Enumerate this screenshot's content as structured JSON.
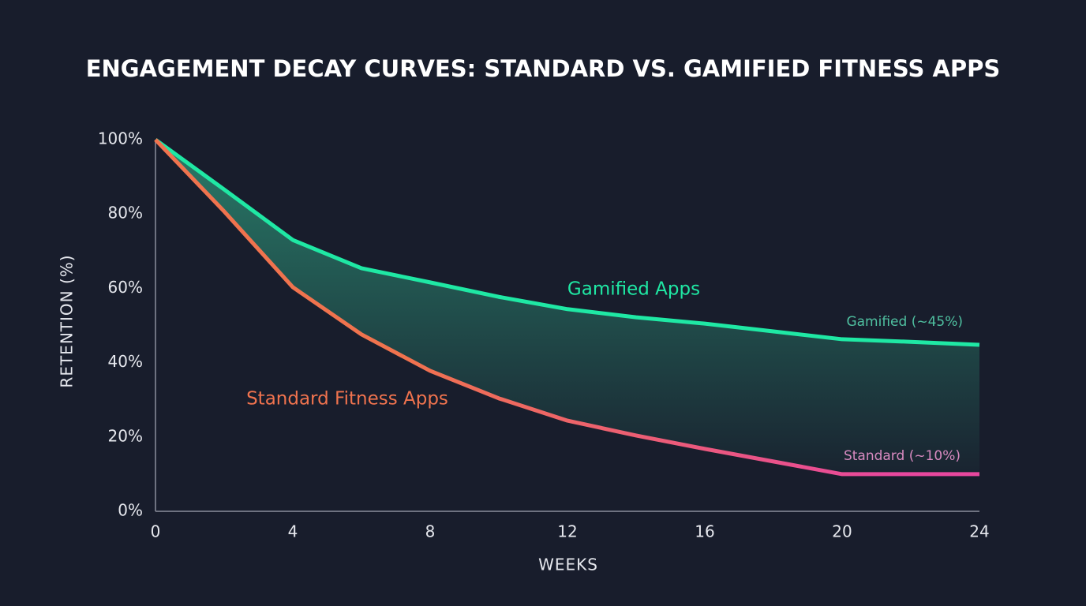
{
  "chart_data": {
    "type": "line",
    "title": "ENGAGEMENT DECAY CURVES: STANDARD VS. GAMIFIED FITNESS APPS",
    "x_label": "WEEKS",
    "y_label": "RETENTION (%)",
    "x": [
      0,
      2,
      4,
      6,
      8,
      10,
      12,
      14,
      16,
      18,
      20,
      22,
      24
    ],
    "series": [
      {
        "name": "Gamified Apps",
        "color": "#1fe8a4",
        "values": [
          100,
          86.6,
          73,
          65.4,
          61.6,
          57.7,
          54.4,
          52.2,
          50.5,
          48.4,
          46.3,
          45.6,
          44.8
        ]
      },
      {
        "name": "Standard Fitness Apps",
        "color": "#f0734e",
        "color_end": "#e8479e",
        "values": [
          100,
          80.7,
          60.3,
          47.6,
          37.8,
          30.4,
          24.4,
          20.4,
          16.8,
          13.4,
          10,
          10,
          10
        ]
      }
    ],
    "end_labels": [
      "Gamified (~45%)",
      "Standard (~10%)"
    ],
    "fill_between": true,
    "fill_color": "#2e9a7c",
    "xlim": [
      0,
      24
    ],
    "xticks": [
      0,
      4,
      8,
      12,
      16,
      20,
      24
    ],
    "ylim": [
      0,
      100
    ],
    "yticks": [
      {
        "value": 0,
        "label": "0%"
      },
      {
        "value": 20,
        "label": "20%"
      },
      {
        "value": 40,
        "label": "40%"
      },
      {
        "value": 60,
        "label": "60%"
      },
      {
        "value": 80,
        "label": "80%"
      },
      {
        "value": 100,
        "label": "100%"
      }
    ],
    "grid": false
  }
}
